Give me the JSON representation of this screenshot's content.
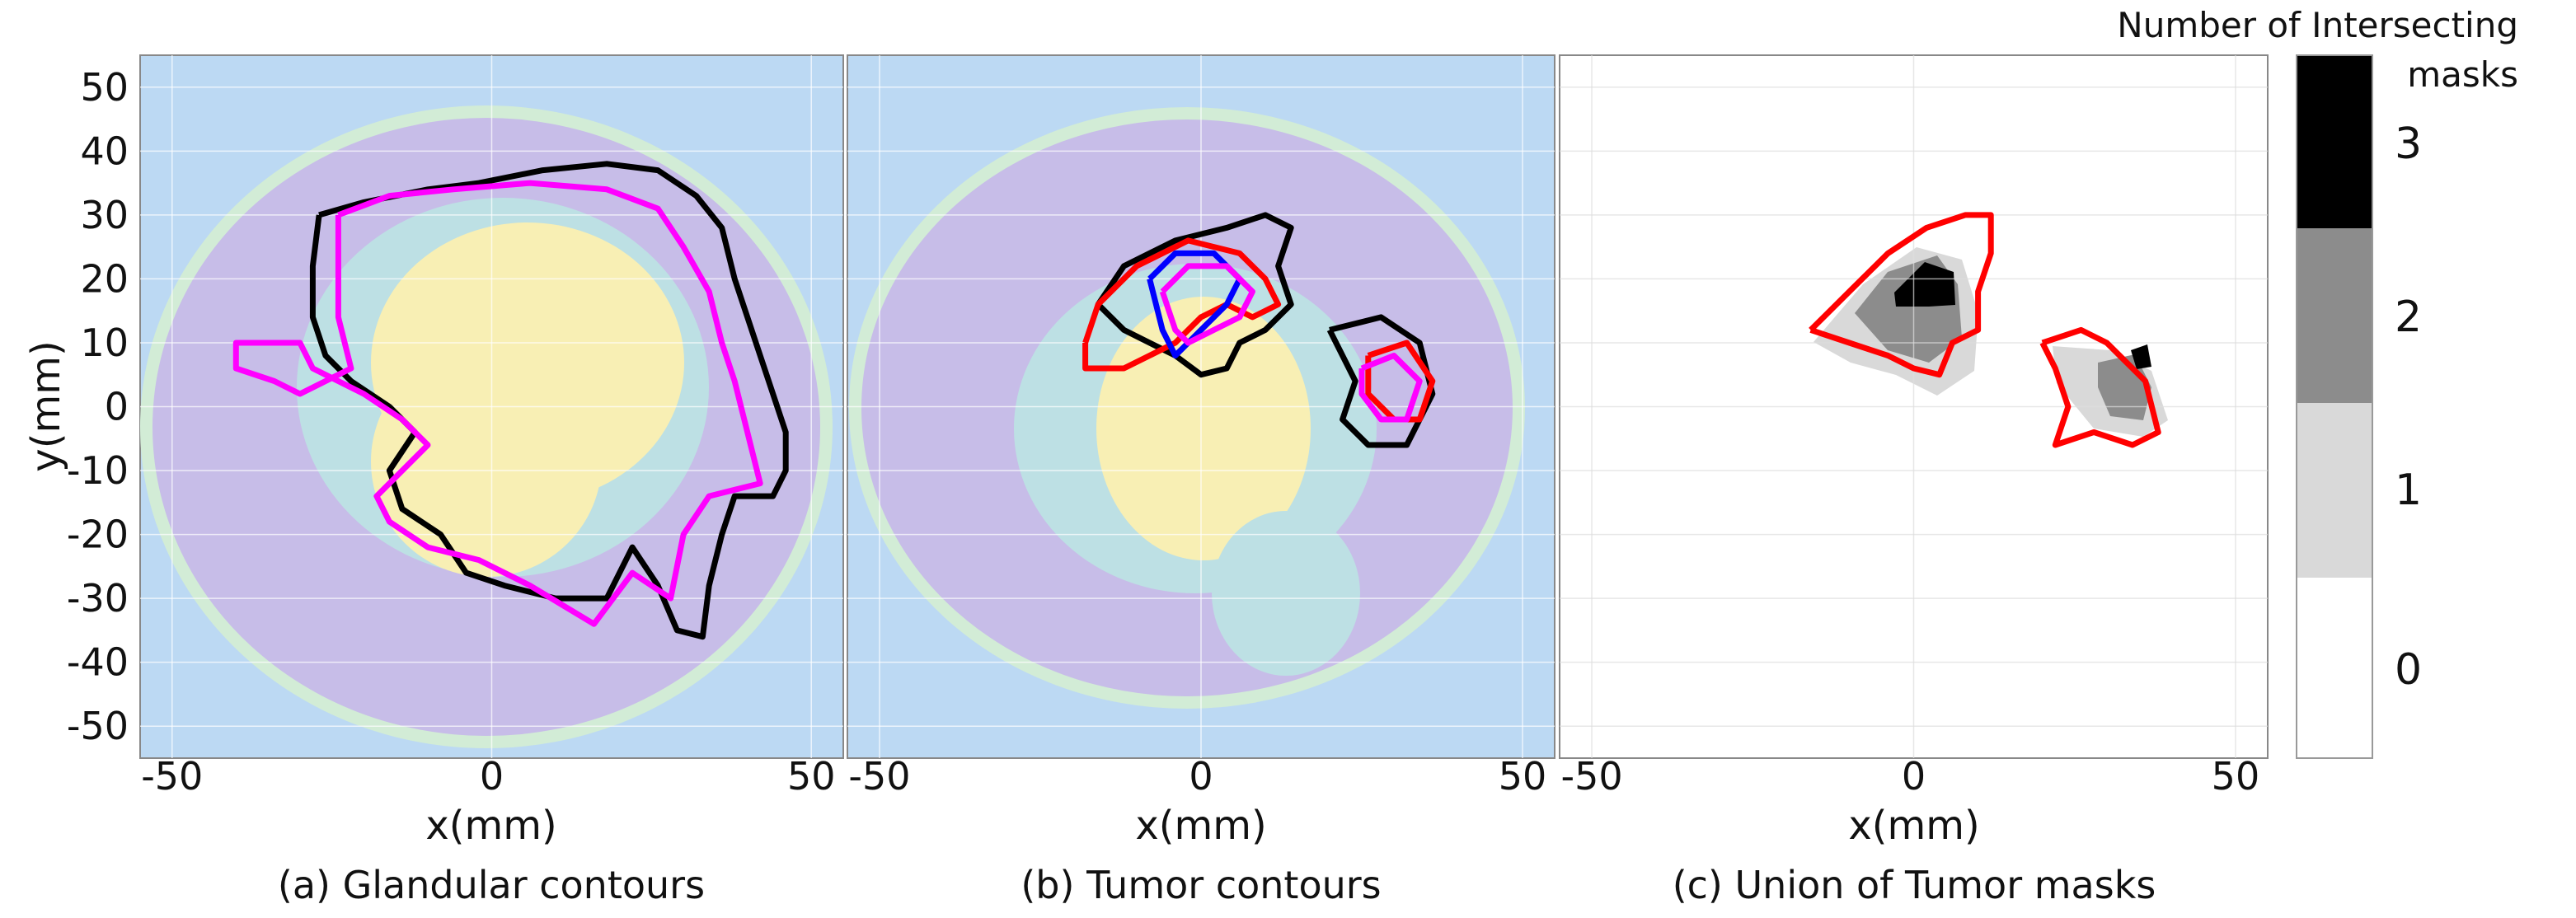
{
  "chart_data": [
    {
      "type": "contour",
      "panel": "a",
      "caption": "(a) Glandular contours",
      "xlabel": "x(mm)",
      "ylabel": "y(mm)",
      "xlim": [
        -55,
        55
      ],
      "ylim": [
        -55,
        55
      ],
      "xticks": [
        -50,
        0,
        50
      ],
      "yticks": [
        50,
        40,
        30,
        20,
        10,
        0,
        -10,
        -20,
        -30,
        -40,
        -50
      ],
      "grid": true,
      "contours": [
        {
          "color": "#000000",
          "points": [
            [
              -27,
              30
            ],
            [
              -20,
              32
            ],
            [
              -10,
              34
            ],
            [
              -2,
              35
            ],
            [
              8,
              37
            ],
            [
              18,
              38
            ],
            [
              26,
              37
            ],
            [
              32,
              33
            ],
            [
              36,
              28
            ],
            [
              38,
              20
            ],
            [
              40,
              14
            ],
            [
              42,
              8
            ],
            [
              44,
              2
            ],
            [
              46,
              -4
            ],
            [
              46,
              -10
            ],
            [
              44,
              -14
            ],
            [
              38,
              -14
            ],
            [
              36,
              -20
            ],
            [
              34,
              -28
            ],
            [
              33,
              -36
            ],
            [
              29,
              -35
            ],
            [
              26,
              -28
            ],
            [
              22,
              -22
            ],
            [
              18,
              -30
            ],
            [
              10,
              -30
            ],
            [
              2,
              -28
            ],
            [
              -4,
              -26
            ],
            [
              -8,
              -20
            ],
            [
              -14,
              -16
            ],
            [
              -16,
              -10
            ],
            [
              -12,
              -4
            ],
            [
              -16,
              0
            ],
            [
              -22,
              4
            ],
            [
              -26,
              8
            ],
            [
              -28,
              14
            ],
            [
              -28,
              22
            ],
            [
              -27,
              30
            ]
          ]
        },
        {
          "color": "#ff00ff",
          "points": [
            [
              -24,
              30
            ],
            [
              -16,
              33
            ],
            [
              -6,
              34
            ],
            [
              6,
              35
            ],
            [
              18,
              34
            ],
            [
              26,
              31
            ],
            [
              30,
              25
            ],
            [
              34,
              18
            ],
            [
              36,
              10
            ],
            [
              38,
              4
            ],
            [
              40,
              -4
            ],
            [
              42,
              -12
            ],
            [
              34,
              -14
            ],
            [
              30,
              -20
            ],
            [
              28,
              -30
            ],
            [
              22,
              -26
            ],
            [
              16,
              -34
            ],
            [
              6,
              -28
            ],
            [
              -2,
              -24
            ],
            [
              -10,
              -22
            ],
            [
              -16,
              -18
            ],
            [
              -18,
              -14
            ],
            [
              -10,
              -6
            ],
            [
              -14,
              -2
            ],
            [
              -20,
              2
            ],
            [
              -24,
              4
            ],
            [
              -28,
              6
            ],
            [
              -30,
              10
            ],
            [
              -40,
              10
            ],
            [
              -40,
              6
            ],
            [
              -34,
              4
            ],
            [
              -30,
              2
            ],
            [
              -22,
              6
            ],
            [
              -24,
              14
            ],
            [
              -24,
              22
            ],
            [
              -24,
              30
            ]
          ]
        }
      ]
    },
    {
      "type": "contour",
      "panel": "b",
      "caption": "(b) Tumor contours",
      "xlabel": "x(mm)",
      "xlim": [
        -55,
        55
      ],
      "ylim": [
        -55,
        55
      ],
      "xticks": [
        -50,
        0,
        50
      ],
      "grid": true,
      "contours": [
        {
          "color": "#000000",
          "points": [
            [
              -16,
              16
            ],
            [
              -12,
              22
            ],
            [
              -4,
              26
            ],
            [
              4,
              28
            ],
            [
              10,
              30
            ],
            [
              14,
              28
            ],
            [
              12,
              22
            ],
            [
              14,
              16
            ],
            [
              10,
              12
            ],
            [
              6,
              10
            ],
            [
              4,
              6
            ],
            [
              0,
              5
            ],
            [
              -4,
              8
            ],
            [
              -8,
              10
            ],
            [
              -12,
              12
            ],
            [
              -16,
              16
            ]
          ]
        },
        {
          "color": "#ff0000",
          "points": [
            [
              -18,
              10
            ],
            [
              -16,
              16
            ],
            [
              -10,
              22
            ],
            [
              -2,
              26
            ],
            [
              6,
              24
            ],
            [
              10,
              20
            ],
            [
              12,
              16
            ],
            [
              8,
              14
            ],
            [
              4,
              16
            ],
            [
              0,
              14
            ],
            [
              -4,
              10
            ],
            [
              -8,
              8
            ],
            [
              -12,
              6
            ],
            [
              -18,
              6
            ],
            [
              -18,
              10
            ]
          ]
        },
        {
          "color": "#0000ff",
          "points": [
            [
              -8,
              20
            ],
            [
              -4,
              24
            ],
            [
              2,
              24
            ],
            [
              6,
              20
            ],
            [
              4,
              16
            ],
            [
              0,
              12
            ],
            [
              -4,
              8
            ],
            [
              -6,
              12
            ],
            [
              -8,
              20
            ]
          ]
        },
        {
          "color": "#ff00ff",
          "points": [
            [
              -6,
              18
            ],
            [
              -2,
              22
            ],
            [
              4,
              22
            ],
            [
              8,
              18
            ],
            [
              6,
              14
            ],
            [
              2,
              12
            ],
            [
              -2,
              10
            ],
            [
              -4,
              12
            ],
            [
              -6,
              18
            ]
          ]
        },
        {
          "color": "#000000",
          "points": [
            [
              20,
              12
            ],
            [
              28,
              14
            ],
            [
              34,
              10
            ],
            [
              36,
              2
            ],
            [
              32,
              -6
            ],
            [
              26,
              -6
            ],
            [
              22,
              -2
            ],
            [
              24,
              4
            ],
            [
              20,
              12
            ]
          ]
        },
        {
          "color": "#ff0000",
          "points": [
            [
              26,
              8
            ],
            [
              32,
              10
            ],
            [
              36,
              4
            ],
            [
              34,
              -2
            ],
            [
              30,
              -2
            ],
            [
              26,
              2
            ],
            [
              26,
              8
            ]
          ]
        },
        {
          "color": "#ff00ff",
          "points": [
            [
              25,
              6
            ],
            [
              30,
              8
            ],
            [
              34,
              4
            ],
            [
              32,
              -2
            ],
            [
              28,
              -2
            ],
            [
              25,
              2
            ],
            [
              25,
              6
            ]
          ]
        }
      ]
    },
    {
      "type": "heatmap",
      "panel": "c",
      "caption": "(c) Union of Tumor masks",
      "xlabel": "x(mm)",
      "xlim": [
        -55,
        55
      ],
      "ylim": [
        -55,
        55
      ],
      "xticks": [
        -50,
        0,
        50
      ],
      "grid": true,
      "contours": [
        {
          "color": "#ff0000",
          "points": [
            [
              -16,
              12
            ],
            [
              -10,
              18
            ],
            [
              -4,
              24
            ],
            [
              2,
              28
            ],
            [
              8,
              30
            ],
            [
              12,
              30
            ],
            [
              12,
              24
            ],
            [
              10,
              18
            ],
            [
              10,
              12
            ],
            [
              6,
              10
            ],
            [
              4,
              5
            ],
            [
              0,
              6
            ],
            [
              -4,
              8
            ],
            [
              -10,
              10
            ],
            [
              -16,
              12
            ]
          ]
        },
        {
          "color": "#ff0000",
          "points": [
            [
              20,
              10
            ],
            [
              26,
              12
            ],
            [
              30,
              10
            ],
            [
              36,
              4
            ],
            [
              38,
              -4
            ],
            [
              34,
              -6
            ],
            [
              28,
              -4
            ],
            [
              22,
              -6
            ],
            [
              24,
              0
            ],
            [
              22,
              6
            ],
            [
              20,
              10
            ]
          ]
        }
      ],
      "colorbar": {
        "title": "Number of Intersecting masks",
        "levels": [
          0,
          1,
          2,
          3
        ],
        "colors": [
          "#ffffff",
          "#d9d9d9",
          "#8c8c8c",
          "#000000"
        ]
      }
    }
  ],
  "colors": {
    "background": "#bcd9f3",
    "tissue_outer": "#d2ecd6",
    "tissue_fat": "#c7bde8",
    "tissue_mid": "#bde0e4",
    "tissue_gland": "#f8efb4"
  }
}
